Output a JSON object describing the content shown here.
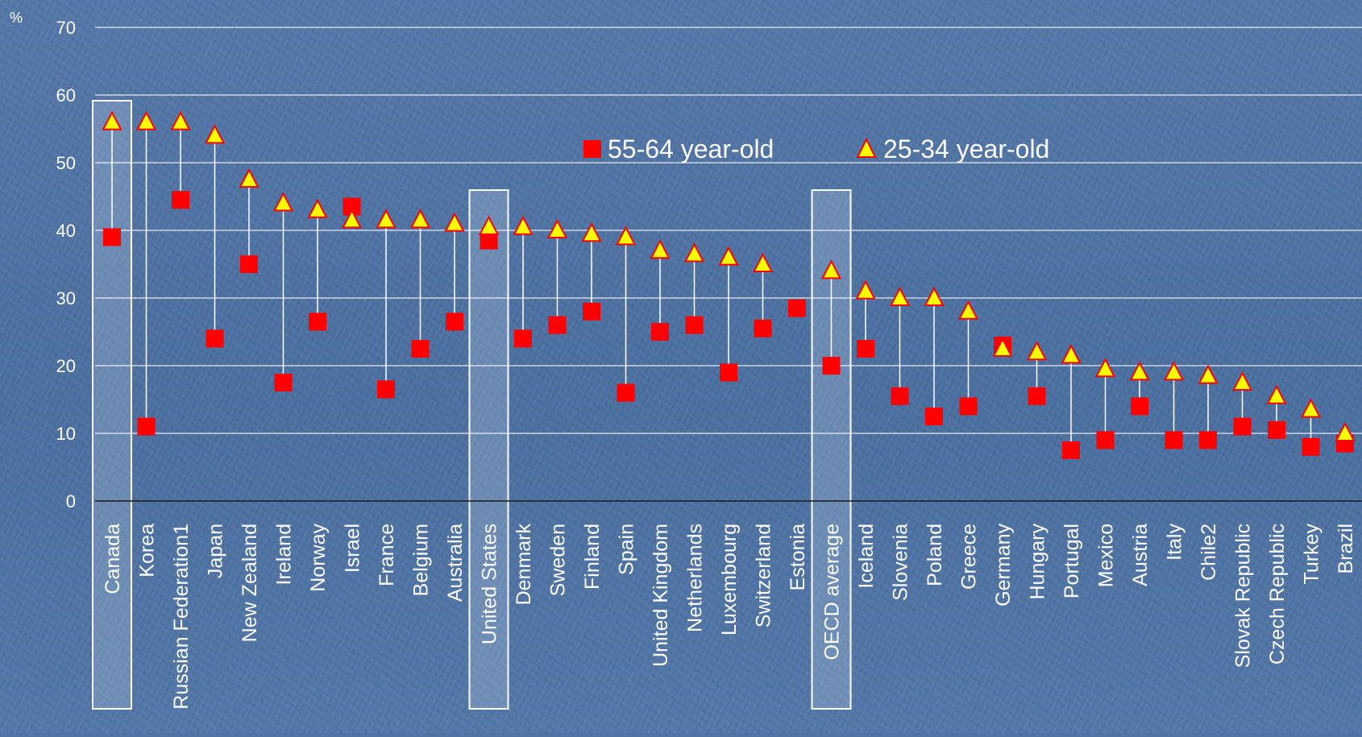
{
  "chart_data": {
    "type": "scatter",
    "unit_label": "%",
    "ylim": [
      0,
      70
    ],
    "yticks": [
      "0",
      "10",
      "20",
      "30",
      "40",
      "50",
      "60",
      "70"
    ],
    "grid": true,
    "legend_placement": "top-center",
    "highlighted_categories": [
      "Canada",
      "United States",
      "OECD average"
    ],
    "categories": [
      "Canada",
      "Korea",
      "Russian Federation1",
      "Japan",
      "New Zealand",
      "Ireland",
      "Norway",
      "Israel",
      "France",
      "Belgium",
      "Australia",
      "United States",
      "Denmark",
      "Sweden",
      "Finland",
      "Spain",
      "United Kingdom",
      "Netherlands",
      "Luxembourg",
      "Switzerland",
      "Estonia",
      "OECD average",
      "Iceland",
      "Slovenia",
      "Poland",
      "Greece",
      "Germany",
      "Hungary",
      "Portugal",
      "Mexico",
      "Austria",
      "Italy",
      "Chile2",
      "Slovak Republic",
      "Czech Republic",
      "Turkey",
      "Brazil"
    ],
    "series": [
      {
        "name": "55-64 year-old",
        "marker": "square",
        "color": "#ff0000",
        "values": [
          39,
          11,
          44.5,
          24,
          35,
          17.5,
          26.5,
          43.5,
          16.5,
          22.5,
          26.5,
          38.5,
          24,
          26,
          28,
          16,
          25,
          26,
          19,
          25.5,
          28.5,
          20,
          22.5,
          15.5,
          12.5,
          14,
          23,
          15.5,
          7.5,
          9,
          14,
          9,
          9,
          11,
          10.5,
          8,
          8.5
        ]
      },
      {
        "name": "25-34 year-old",
        "marker": "triangle",
        "color": "#ffff00",
        "values": [
          56,
          56,
          56,
          54,
          47.5,
          44,
          43,
          41.5,
          41.5,
          41.5,
          41,
          40.5,
          40.5,
          40,
          39.5,
          39,
          37,
          36.5,
          36,
          35,
          null,
          34,
          31,
          30,
          30,
          28,
          22.5,
          22,
          21.5,
          19.5,
          19,
          19,
          18.5,
          17.5,
          15.5,
          13.5,
          10
        ]
      }
    ]
  }
}
